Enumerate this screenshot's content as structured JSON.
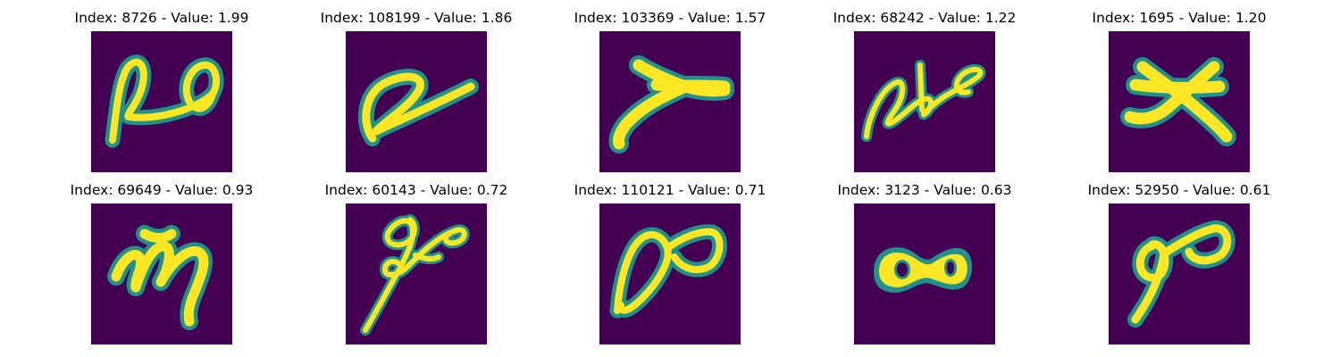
{
  "colors": {
    "background": "#440154",
    "stroke_core": "#fde725",
    "stroke_edge": "#21918c",
    "text": "#000000"
  },
  "panels": [
    {
      "title": "Index: 8726 - Value: 1.99",
      "glyph": "loop-pair-glyph"
    },
    {
      "title": "Index: 108199 - Value: 1.86",
      "glyph": "slanted-loop-glyph"
    },
    {
      "title": "Index: 103369 - Value: 1.57",
      "glyph": "y-shape-glyph"
    },
    {
      "title": "Index: 68242 - Value: 1.22",
      "glyph": "cursive-loops-glyph"
    },
    {
      "title": "Index: 1695 - Value: 1.20",
      "glyph": "x-shape-glyph"
    },
    {
      "title": "Index: 69649 - Value: 0.93",
      "glyph": "m-shape-glyph"
    },
    {
      "title": "Index: 60143 - Value: 0.72",
      "glyph": "scribble-glyph"
    },
    {
      "title": "Index: 110121 - Value: 0.71",
      "glyph": "infinity-glyph"
    },
    {
      "title": "Index: 3123 - Value: 0.63",
      "glyph": "thick-eight-glyph"
    },
    {
      "title": "Index: 52950 - Value: 0.61",
      "glyph": "nine-loop-glyph"
    }
  ]
}
